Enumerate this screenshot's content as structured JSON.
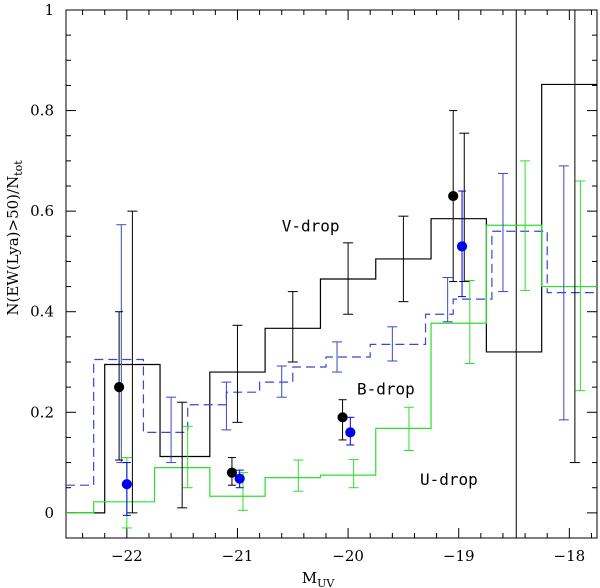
{
  "chart_data": {
    "type": "line",
    "title": "",
    "xlabel": "M",
    "xlabel_sub": "UV",
    "ylabel": "N(EW(Lya)>50)/N",
    "ylabel_sub": "tot",
    "xlim": [
      -22.55,
      -17.75
    ],
    "ylim": [
      -0.05,
      1.0
    ],
    "x_ticks": [
      -22,
      -21,
      -20,
      -19,
      -18
    ],
    "y_ticks": [
      0,
      0.2,
      0.4,
      0.6,
      0.8,
      1
    ],
    "annotations": [
      {
        "text": "V-drop",
        "x": -20.6,
        "y": 0.56
      },
      {
        "text": "B-drop",
        "x": -19.92,
        "y": 0.235
      },
      {
        "text": "U-drop",
        "x": -19.35,
        "y": 0.055
      }
    ],
    "vertical_line": {
      "x": -18.48
    },
    "series": [
      {
        "name": "V-drop",
        "style": "solid",
        "color": "#000000",
        "edges": [
          -22.55,
          -22.2,
          -21.7,
          -21.25,
          -20.75,
          -20.25,
          -19.75,
          -19.25,
          -18.75,
          -18.25,
          -17.75
        ],
        "values": [
          0.0,
          0.295,
          0.112,
          0.28,
          0.367,
          0.465,
          0.505,
          0.585,
          0.32,
          0.852
        ],
        "errorbars": [
          {
            "x": -21.95,
            "y": 0.295,
            "lo": 0.0,
            "hi": 0.6
          },
          {
            "x": -21.5,
            "y": 0.112,
            "lo": 0.01,
            "hi": 0.22
          },
          {
            "x": -21.0,
            "y": 0.28,
            "lo": 0.18,
            "hi": 0.373
          },
          {
            "x": -20.5,
            "y": 0.367,
            "lo": 0.3,
            "hi": 0.44
          },
          {
            "x": -20.0,
            "y": 0.465,
            "lo": 0.395,
            "hi": 0.537
          },
          {
            "x": -19.5,
            "y": 0.505,
            "lo": 0.42,
            "hi": 0.59
          },
          {
            "x": -18.95,
            "y": 0.585,
            "lo": 0.46,
            "hi": 0.755
          },
          {
            "x": -17.95,
            "y": 0.852,
            "lo": 0.1,
            "hi": 1.0
          }
        ]
      },
      {
        "name": "B-drop",
        "style": "dashed",
        "color": "#3a47c9",
        "edges": [
          -22.55,
          -22.3,
          -21.85,
          -21.45,
          -21.1,
          -20.8,
          -20.5,
          -20.2,
          -19.8,
          -19.3,
          -19.05,
          -18.7,
          -18.2,
          -17.75
        ],
        "values": [
          0.055,
          0.305,
          0.16,
          0.215,
          0.24,
          0.26,
          0.29,
          0.31,
          0.335,
          0.395,
          0.425,
          0.56,
          0.438
        ],
        "errorbars": [
          {
            "x": -22.05,
            "y": 0.305,
            "lo": 0.1,
            "hi": 0.573
          },
          {
            "x": -21.6,
            "y": 0.16,
            "lo": 0.1,
            "hi": 0.23
          },
          {
            "x": -21.1,
            "y": 0.215,
            "lo": 0.165,
            "hi": 0.26
          },
          {
            "x": -20.6,
            "y": 0.26,
            "lo": 0.23,
            "hi": 0.292
          },
          {
            "x": -20.1,
            "y": 0.31,
            "lo": 0.28,
            "hi": 0.34
          },
          {
            "x": -19.6,
            "y": 0.335,
            "lo": 0.302,
            "hi": 0.37
          },
          {
            "x": -19.1,
            "y": 0.425,
            "lo": 0.38,
            "hi": 0.468
          },
          {
            "x": -18.6,
            "y": 0.56,
            "lo": 0.44,
            "hi": 0.675
          },
          {
            "x": -18.05,
            "y": 0.438,
            "lo": 0.185,
            "hi": 0.69
          }
        ]
      },
      {
        "name": "U-drop",
        "style": "solid",
        "color": "#2de02d",
        "edges": [
          -22.55,
          -22.3,
          -21.75,
          -21.25,
          -20.75,
          -20.25,
          -19.75,
          -19.25,
          -18.75,
          -18.25,
          -17.75
        ],
        "values": [
          0.0,
          0.022,
          0.09,
          0.033,
          0.07,
          0.075,
          0.168,
          0.377,
          0.572,
          0.45
        ],
        "errorbars": [
          {
            "x": -22.0,
            "y": 0.022,
            "lo": -0.03,
            "hi": 0.11
          },
          {
            "x": -21.45,
            "y": 0.09,
            "lo": 0.05,
            "hi": 0.172
          },
          {
            "x": -20.95,
            "y": 0.033,
            "lo": 0.005,
            "hi": 0.08
          },
          {
            "x": -20.45,
            "y": 0.07,
            "lo": 0.043,
            "hi": 0.105
          },
          {
            "x": -19.95,
            "y": 0.075,
            "lo": 0.05,
            "hi": 0.106
          },
          {
            "x": -19.45,
            "y": 0.168,
            "lo": 0.124,
            "hi": 0.21
          },
          {
            "x": -18.9,
            "y": 0.377,
            "lo": 0.297,
            "hi": 0.462
          },
          {
            "x": -18.4,
            "y": 0.572,
            "lo": 0.442,
            "hi": 0.7
          },
          {
            "x": -17.9,
            "y": 0.45,
            "lo": 0.243,
            "hi": 0.66
          }
        ]
      }
    ],
    "points": [
      {
        "name": "black-points",
        "color": "#000000",
        "pts": [
          {
            "x": -22.07,
            "y": 0.25,
            "lo": 0.105,
            "hi": 0.4
          },
          {
            "x": -21.05,
            "y": 0.08,
            "lo": 0.055,
            "hi": 0.11
          },
          {
            "x": -20.05,
            "y": 0.19,
            "lo": 0.145,
            "hi": 0.225
          },
          {
            "x": -19.05,
            "y": 0.63,
            "lo": 0.46,
            "hi": 0.8
          }
        ]
      },
      {
        "name": "blue-points",
        "color": "#0000ee",
        "pts": [
          {
            "x": -22.0,
            "y": 0.057,
            "lo": -0.005,
            "hi": 0.1
          },
          {
            "x": -20.98,
            "y": 0.068,
            "lo": 0.05,
            "hi": 0.085
          },
          {
            "x": -19.98,
            "y": 0.16,
            "lo": 0.135,
            "hi": 0.19
          },
          {
            "x": -18.97,
            "y": 0.53,
            "lo": 0.43,
            "hi": 0.64
          }
        ]
      }
    ]
  }
}
